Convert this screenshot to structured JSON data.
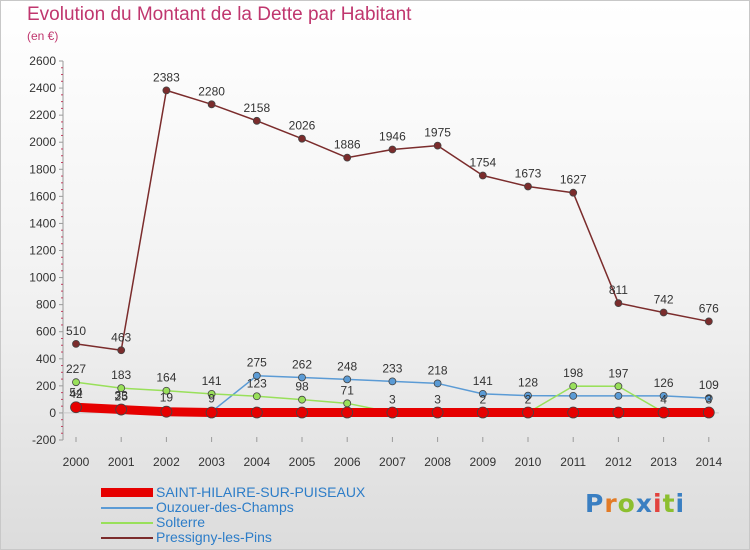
{
  "header": {
    "title": "Evolution du Montant de la Dette par Habitant",
    "subtitle": "(en €)"
  },
  "logo": {
    "text": "Proxiti",
    "colors": [
      "#3a7fc2",
      "#e37b26",
      "#8cbf2f",
      "#3a7fc2",
      "#e2433e",
      "#8cbf2f",
      "#3a7fc2"
    ]
  },
  "chart_data": {
    "type": "line",
    "title": "Evolution du Montant de la Dette par Habitant",
    "subtitle": "(en €)",
    "x": [
      "2000",
      "2001",
      "2002",
      "2003",
      "2004",
      "2005",
      "2006",
      "2007",
      "2008",
      "2009",
      "2010",
      "2011",
      "2012",
      "2013",
      "2014"
    ],
    "ylim": [
      -200,
      2600
    ],
    "yticks": [
      -200,
      0,
      200,
      400,
      600,
      800,
      1000,
      1200,
      1400,
      1600,
      1800,
      2000,
      2200,
      2400,
      2600
    ],
    "grid": false,
    "legend_position": "bottom-left",
    "series": [
      {
        "name": "SAINT-HILAIRE-SUR-PUISEAUX",
        "color": "#e60000",
        "values": [
          42,
          25,
          9,
          3,
          3,
          3,
          3,
          3,
          3,
          3,
          3,
          3,
          3,
          3,
          3
        ],
        "labels": [
          "42",
          "25",
          "",
          "",
          "",
          "",
          "",
          "",
          "",
          "",
          "",
          "",
          "",
          "",
          ""
        ]
      },
      {
        "name": "Ouzouer-des-Champs",
        "color": "#5b9bd5",
        "values": [
          54,
          33,
          19,
          9,
          275,
          262,
          248,
          233,
          218,
          141,
          128,
          126,
          126,
          126,
          109
        ],
        "labels": [
          "54",
          "33",
          "19",
          "9",
          "275",
          "262",
          "248",
          "233",
          "218",
          "141",
          "128",
          "",
          "",
          "126",
          "109"
        ]
      },
      {
        "name": "Solterre",
        "color": "#99e05a",
        "values": [
          227,
          183,
          164,
          141,
          123,
          98,
          71,
          3,
          3,
          2,
          2,
          198,
          197,
          4,
          3
        ],
        "labels": [
          "227",
          "183",
          "164",
          "141",
          "123",
          "98",
          "71",
          "3",
          "3",
          "2",
          "2",
          "198",
          "197",
          "4",
          "3"
        ]
      },
      {
        "name": "Pressigny-les-Pins",
        "color": "#7b2c2c",
        "values": [
          510,
          463,
          2383,
          2280,
          2158,
          2026,
          1886,
          1946,
          1975,
          1754,
          1673,
          1627,
          811,
          742,
          676
        ],
        "labels": [
          "510",
          "463",
          "2383",
          "2280",
          "2158",
          "2026",
          "1886",
          "1946",
          "1975",
          "1754",
          "1673",
          "1627",
          "811",
          "742",
          "676"
        ]
      }
    ]
  }
}
